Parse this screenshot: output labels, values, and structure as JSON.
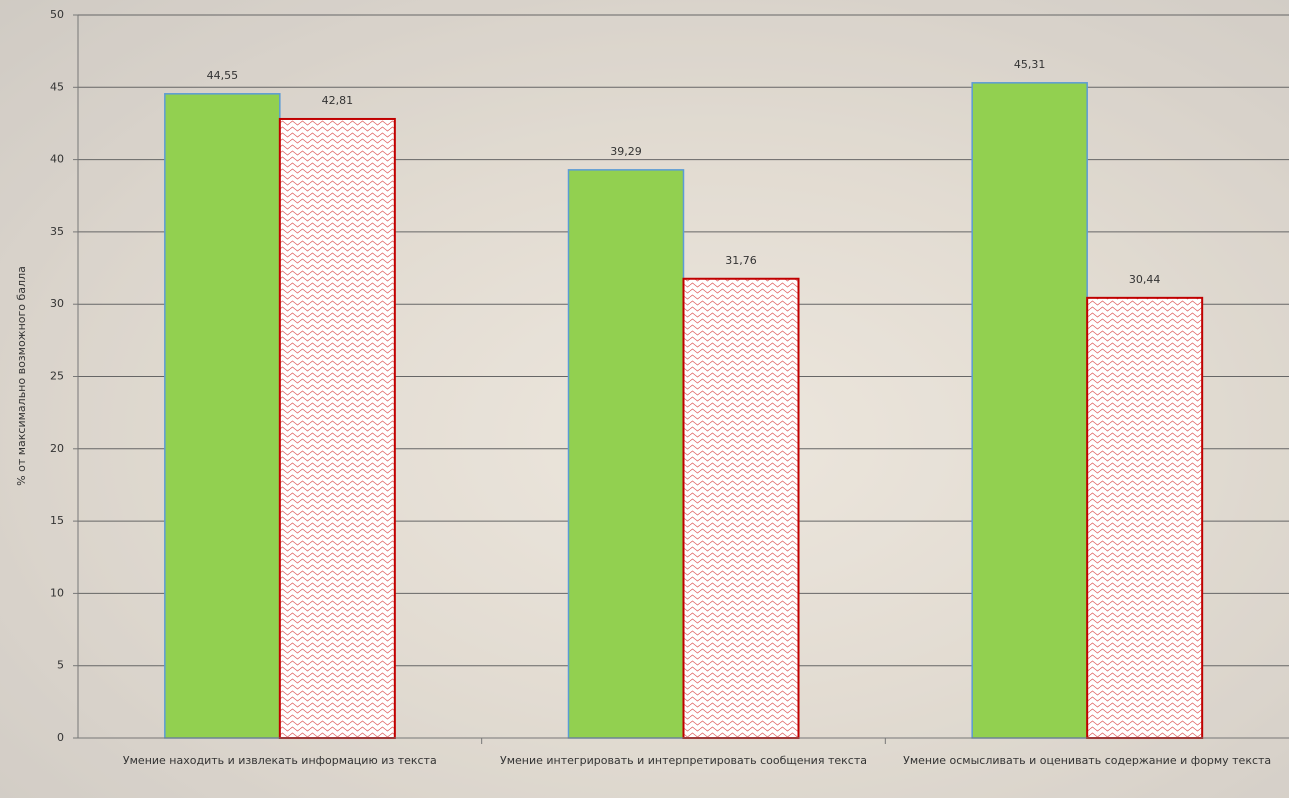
{
  "chart_data": {
    "type": "bar",
    "y_label": "% от максимально возможного балла",
    "categories": [
      "Умение находить и извлекать информацию из текста",
      "Умение интегрировать и интерпретировать сообщения текста",
      "Умение осмысливать и оценивать содержание и форму текста"
    ],
    "series": [
      {
        "color": "#92d050",
        "values": [
          44.55,
          39.29,
          45.31
        ],
        "value_labels": [
          "44,55",
          "39,29",
          "45,31"
        ]
      },
      {
        "color": "#c00000",
        "values": [
          42.81,
          31.76,
          30.44
        ],
        "value_labels": [
          "42,81",
          "31,76",
          "30,44"
        ]
      }
    ],
    "ylim": [
      0,
      50
    ],
    "yticks": [
      0,
      5,
      10,
      15,
      20,
      25,
      30,
      35,
      40,
      45,
      50
    ],
    "grid": true
  }
}
